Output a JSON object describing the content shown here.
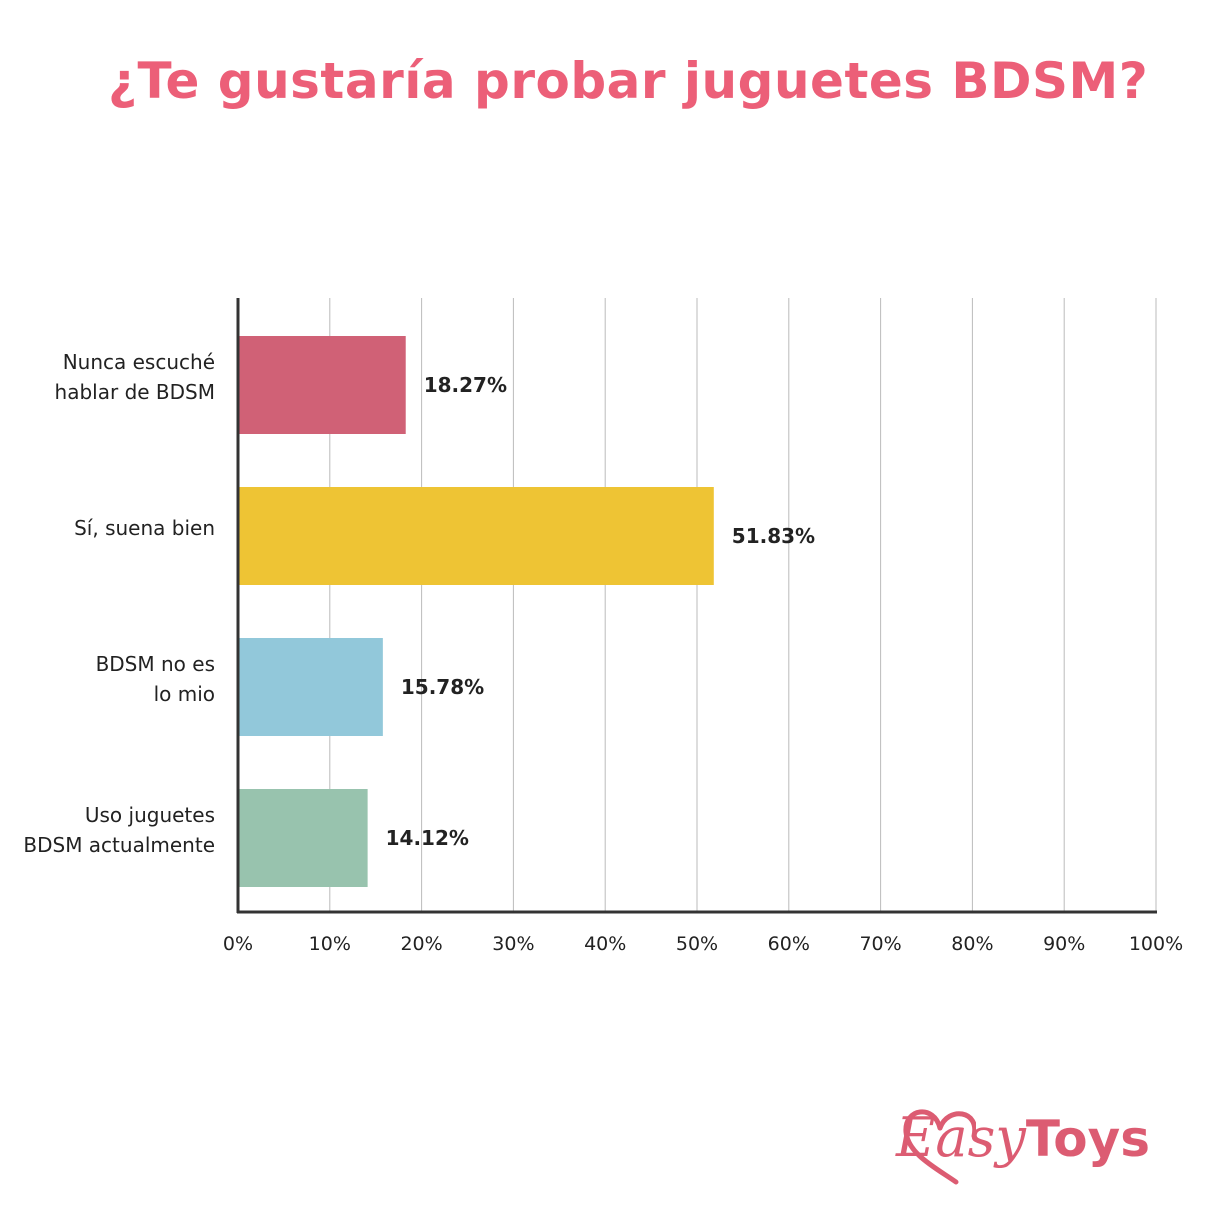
{
  "chart_data": {
    "type": "bar",
    "orientation": "horizontal",
    "title": "¿Te gustaría probar juguetes BDSM?",
    "categories": [
      [
        "Nunca escuché",
        "hablar de BDSM"
      ],
      [
        "Sí, suena bien"
      ],
      [
        "BDSM no es",
        "lo mio"
      ],
      [
        "Uso juguetes",
        "BDSM actualmente"
      ]
    ],
    "values": [
      18.27,
      51.83,
      15.78,
      14.12
    ],
    "value_labels": [
      "18.27%",
      "51.83%",
      "15.78%",
      "14.12%"
    ],
    "colors": [
      "#d06176",
      "#eec434",
      "#92c8da",
      "#98c3ae"
    ],
    "xlim": [
      0,
      100
    ],
    "xticks": [
      0,
      10,
      20,
      30,
      40,
      50,
      60,
      70,
      80,
      90,
      100
    ],
    "xtick_labels": [
      "0%",
      "10%",
      "20%",
      "30%",
      "40%",
      "50%",
      "60%",
      "70%",
      "80%",
      "90%",
      "100%"
    ],
    "grid": true,
    "xlabel": "",
    "ylabel": ""
  },
  "brand": {
    "logo_part1": "Easy",
    "logo_part2": "Toys",
    "title_color": "#ec5f78",
    "logo_color": "#dc5c72"
  }
}
